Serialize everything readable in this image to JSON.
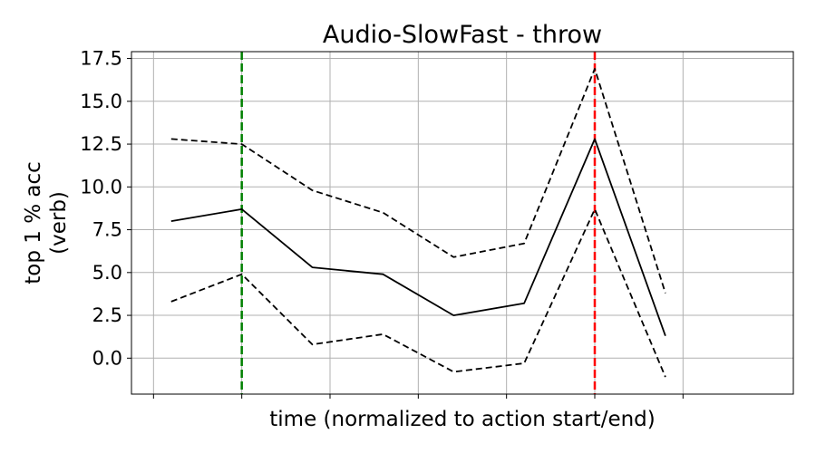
{
  "chart_data": {
    "type": "line",
    "title": "Audio-SlowFast - throw",
    "xlabel": "time (normalized to action start/end)",
    "ylabel_lines": [
      "top 1 % acc",
      "(verb)"
    ],
    "ylim": [
      -2.1,
      17.9
    ],
    "y_ticks": [
      0.0,
      2.5,
      5.0,
      7.5,
      10.0,
      12.5,
      15.0,
      17.5
    ],
    "y_tick_labels": [
      "0.0",
      "2.5",
      "5.0",
      "7.5",
      "10.0",
      "12.5",
      "15.0",
      "17.5"
    ],
    "xlim": [
      -0.25,
      7.25
    ],
    "x_ticks": [
      0,
      1,
      2,
      3,
      4,
      5,
      6
    ],
    "x": [
      0.2,
      1.0,
      1.8,
      2.6,
      3.4,
      4.2,
      5.0,
      5.8
    ],
    "series": [
      {
        "role": "mean",
        "style": "solid",
        "color": "#000000",
        "values": [
          8.0,
          8.7,
          5.3,
          4.9,
          2.5,
          3.2,
          12.8,
          1.3
        ]
      },
      {
        "role": "upper",
        "style": "dashed",
        "color": "#000000",
        "values": [
          12.8,
          12.5,
          9.8,
          8.5,
          5.9,
          6.7,
          16.9,
          3.8
        ]
      },
      {
        "role": "lower",
        "style": "dashed",
        "color": "#000000",
        "values": [
          3.3,
          4.9,
          0.8,
          1.4,
          -0.8,
          -0.3,
          8.7,
          -1.1
        ]
      }
    ],
    "vlines": [
      {
        "x": 1.0,
        "color": "#008000",
        "style": "dashed"
      },
      {
        "x": 5.0,
        "color": "#ff0000",
        "style": "dashed"
      }
    ],
    "grid": true
  }
}
